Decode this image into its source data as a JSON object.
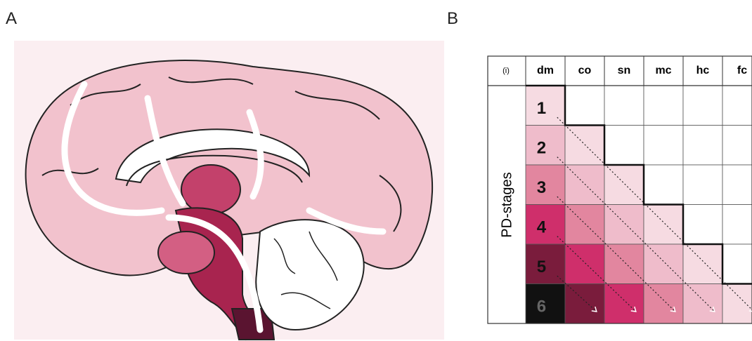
{
  "panel_a": {
    "label": "A"
  },
  "panel_b": {
    "label": "B",
    "table": {
      "corner": "(i)",
      "columns": [
        "dm",
        "co",
        "sn",
        "mc",
        "hc",
        "fc"
      ],
      "row_axis_label": "PD-stages",
      "rows": [
        "1",
        "2",
        "3",
        "4",
        "5",
        "6"
      ]
    }
  }
}
